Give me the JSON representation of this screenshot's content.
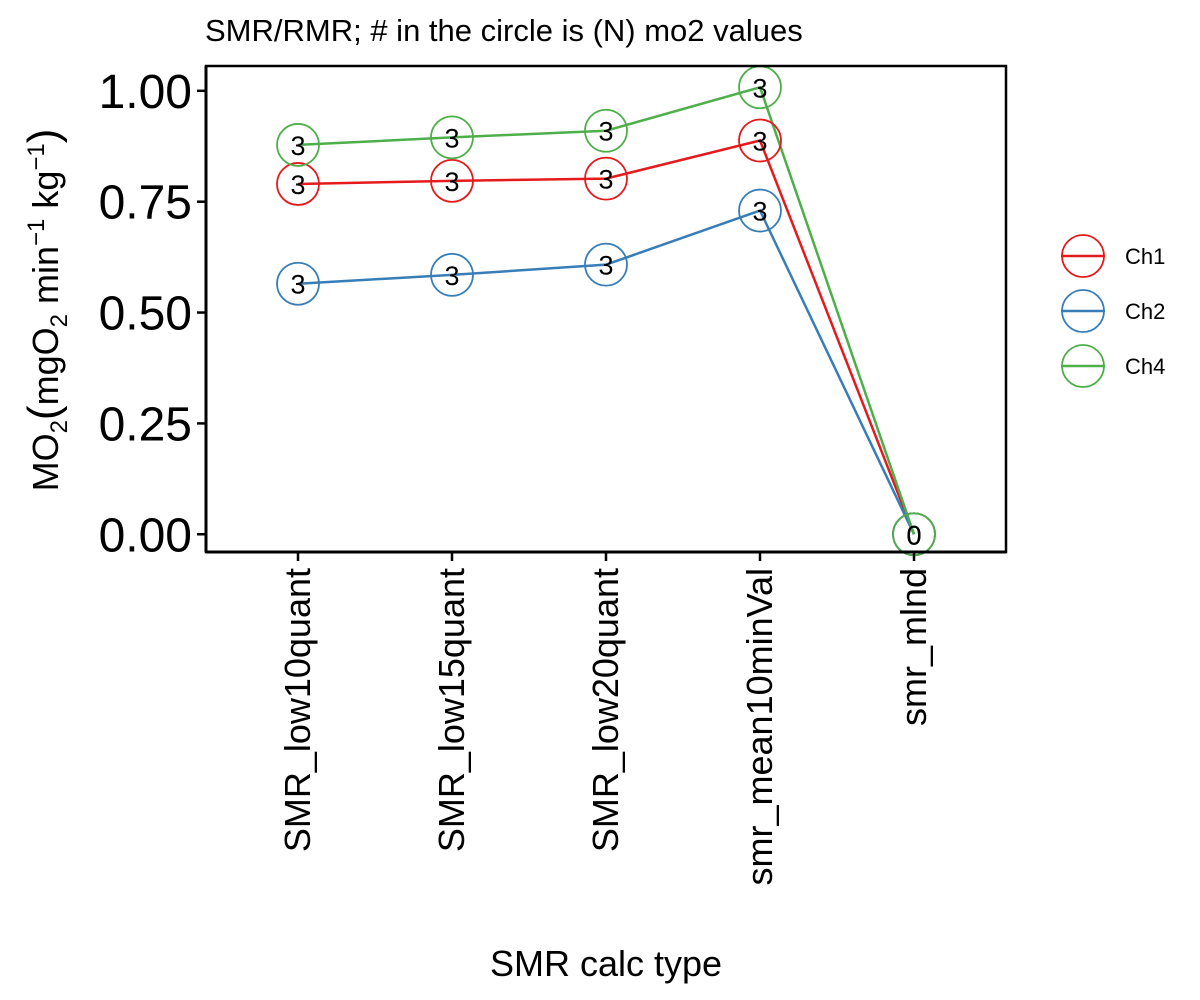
{
  "chart_data": {
    "type": "line",
    "title": "SMR/RMR; # in the circle is (N) mo2 values",
    "xlabel": "SMR calc type",
    "ylabel": {
      "base": "MO",
      "sub1": "2",
      "open": "(",
      "mid1": "mgO",
      "sub2": "2",
      "mid2": " min",
      "sup1": "−1",
      "mid3": " kg",
      "sup2": "−1",
      "close": ")"
    },
    "categories": [
      "SMR_low10quant",
      "SMR_low15quant",
      "SMR_low20quant",
      "smr_mean10minVal",
      "smr_mlnd"
    ],
    "ylim": [
      -0.04,
      1.056
    ],
    "yticks": [
      0.0,
      0.25,
      0.5,
      0.75,
      1.0
    ],
    "ytick_labels": [
      "0.00",
      "0.25",
      "0.50",
      "0.75",
      "1.00"
    ],
    "grid": false,
    "legend_position": "right",
    "series": [
      {
        "name": "Ch1",
        "color": "#E41A1C",
        "values": [
          0.79,
          0.797,
          0.802,
          0.888,
          0.0
        ],
        "n": [
          "3",
          "3",
          "3",
          "3",
          "0"
        ]
      },
      {
        "name": "Ch2",
        "color": "#377EB8",
        "values": [
          0.565,
          0.585,
          0.608,
          0.73,
          0.0
        ],
        "n": [
          "3",
          "3",
          "3",
          "3",
          "0"
        ]
      },
      {
        "name": "Ch4",
        "color": "#4DAF4A",
        "values": [
          0.878,
          0.895,
          0.91,
          1.008,
          0.0
        ],
        "n": [
          "3",
          "3",
          "3",
          "3",
          "0"
        ]
      }
    ]
  }
}
